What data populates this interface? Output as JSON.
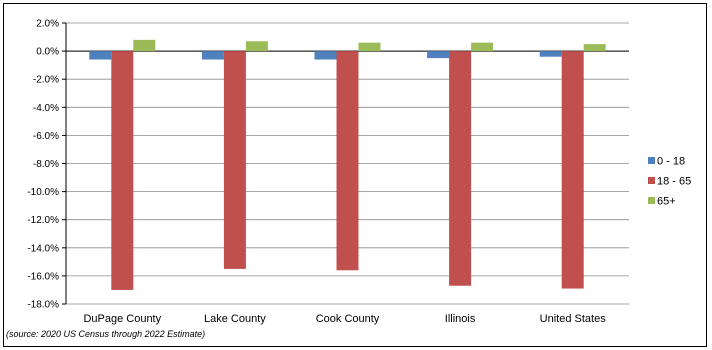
{
  "chart_data": {
    "type": "bar",
    "categories": [
      "DuPage County",
      "Lake County",
      "Cook County",
      "Illinois",
      "United States"
    ],
    "series": [
      {
        "name": "0 - 18",
        "color": "#4f81bd",
        "values": [
          -0.6,
          -0.6,
          -0.6,
          -0.5,
          -0.4
        ]
      },
      {
        "name": "18 - 65",
        "color": "#c0504d",
        "values": [
          -17.0,
          -15.5,
          -15.6,
          -16.7,
          -16.9
        ]
      },
      {
        "name": "65+",
        "color": "#9bbb59",
        "values": [
          0.8,
          0.7,
          0.6,
          0.6,
          0.5
        ]
      }
    ],
    "ylim": [
      -18,
      2
    ],
    "ytick_step": 2,
    "ytick_format": "percent_1dp",
    "grid": true,
    "legend_position": "right"
  },
  "source_note": "(source: 2020 US Census through 2022 Estimate)"
}
